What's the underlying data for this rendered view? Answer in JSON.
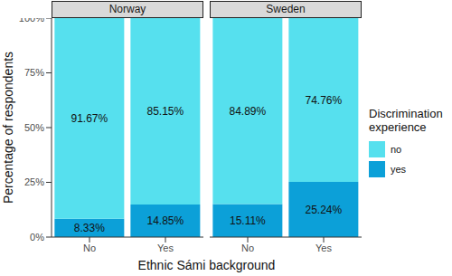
{
  "chart_data": {
    "type": "bar",
    "stacked": true,
    "data_labels": true,
    "x_label": "Ethnic Sámi background",
    "y_label": "Percentage of respondents",
    "legend_title": "Discrimination experience",
    "legend": "right",
    "ylim": [
      0,
      100
    ],
    "yticks": [
      {
        "value": 0,
        "label": "0%"
      },
      {
        "value": 25,
        "label": "25%"
      },
      {
        "value": 50,
        "label": "50%"
      },
      {
        "value": 75,
        "label": "75%"
      },
      {
        "value": 100,
        "label": "100%"
      }
    ],
    "categories": [
      "No",
      "Yes"
    ],
    "series": [
      {
        "name": "no",
        "color": "#56e0ee"
      },
      {
        "name": "yes",
        "color": "#0ca0d8"
      }
    ],
    "panels": [
      {
        "title": "Norway",
        "series": [
          {
            "name": "no",
            "values": [
              91.67,
              85.15
            ],
            "value_labels": [
              "91.67%",
              "85.15%"
            ]
          },
          {
            "name": "yes",
            "values": [
              8.33,
              14.85
            ],
            "value_labels": [
              "8.33%",
              "14.85%"
            ]
          }
        ]
      },
      {
        "title": "Sweden",
        "series": [
          {
            "name": "no",
            "values": [
              84.89,
              74.76
            ],
            "value_labels": [
              "84.89%",
              "74.76%"
            ]
          },
          {
            "name": "yes",
            "values": [
              15.11,
              25.24
            ],
            "value_labels": [
              "15.11%",
              "25.24%"
            ]
          }
        ]
      }
    ]
  }
}
